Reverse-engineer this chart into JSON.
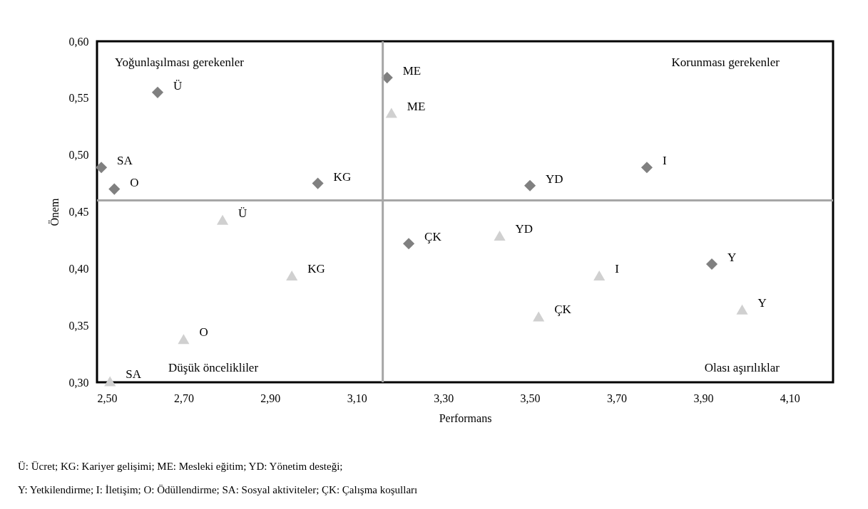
{
  "chart_data": {
    "type": "scatter",
    "xlabel": "Performans",
    "ylabel": "Önem",
    "xlim": [
      2.5,
      4.2
    ],
    "ylim": [
      0.3,
      0.6
    ],
    "xticks": [
      {
        "value": 2.5,
        "label": "2,50"
      },
      {
        "value": 2.7,
        "label": "2,70"
      },
      {
        "value": 2.9,
        "label": "2,90"
      },
      {
        "value": 3.1,
        "label": "3,10"
      },
      {
        "value": 3.3,
        "label": "3,30"
      },
      {
        "value": 3.5,
        "label": "3,50"
      },
      {
        "value": 3.7,
        "label": "3,70"
      },
      {
        "value": 3.9,
        "label": "3,90"
      },
      {
        "value": 4.1,
        "label": "4,10"
      }
    ],
    "yticks": [
      {
        "value": 0.3,
        "label": "0,30"
      },
      {
        "value": 0.35,
        "label": "0,35"
      },
      {
        "value": 0.4,
        "label": "0,40"
      },
      {
        "value": 0.45,
        "label": "0,45"
      },
      {
        "value": 0.5,
        "label": "0,50"
      },
      {
        "value": 0.55,
        "label": "0,55"
      },
      {
        "value": 0.6,
        "label": "0,60"
      }
    ],
    "grid": false,
    "series": [
      {
        "color": "#808080",
        "marker": "diamond",
        "x": [
          2.64,
          3.17,
          2.51,
          2.54,
          3.01,
          3.5,
          3.77,
          3.22,
          3.92
        ],
        "values": [
          0.555,
          0.568,
          0.489,
          0.47,
          0.475,
          0.473,
          0.489,
          0.422,
          0.404
        ]
      },
      {
        "color": "#d0d0d0",
        "marker": "triangle",
        "x": [
          3.18,
          2.79,
          2.95,
          2.7,
          2.53,
          3.43,
          3.66,
          3.52,
          3.99
        ],
        "values": [
          0.537,
          0.443,
          0.394,
          0.338,
          0.301,
          0.429,
          0.394,
          0.358,
          0.364
        ]
      }
    ],
    "ref_lines": [
      {
        "axis": "x",
        "value": 3.16,
        "color": "#a6a6a6"
      },
      {
        "axis": "y",
        "value": 0.46,
        "color": "#a6a6a6"
      }
    ],
    "annotations": [
      "Yoğunlaşılması gerekenler",
      "Korunması gerekenler",
      "Düşük öncelikliler",
      "Olası aşırılıklar",
      {
        "text": "Ü",
        "x": 2.64,
        "y": 0.555
      },
      {
        "text": "ME",
        "x": 3.17,
        "y": 0.568
      },
      {
        "text": "SA",
        "x": 2.51,
        "y": 0.489
      },
      {
        "text": "O",
        "x": 2.54,
        "y": 0.47
      },
      {
        "text": "KG",
        "x": 3.01,
        "y": 0.475
      },
      {
        "text": "YD",
        "x": 3.5,
        "y": 0.473
      },
      {
        "text": "I",
        "x": 3.77,
        "y": 0.489
      },
      {
        "text": "ÇK",
        "x": 3.22,
        "y": 0.422
      },
      {
        "text": "Y",
        "x": 3.92,
        "y": 0.404
      },
      {
        "text": "ME",
        "x": 3.18,
        "y": 0.537
      },
      {
        "text": "Ü",
        "x": 2.79,
        "y": 0.443
      },
      {
        "text": "KG",
        "x": 2.95,
        "y": 0.394
      },
      {
        "text": "O",
        "x": 2.7,
        "y": 0.338
      },
      {
        "text": "SA",
        "x": 2.53,
        "y": 0.301
      },
      {
        "text": "YD",
        "x": 3.43,
        "y": 0.429
      },
      {
        "text": "I",
        "x": 3.66,
        "y": 0.394
      },
      {
        "text": "ÇK",
        "x": 3.52,
        "y": 0.358
      },
      {
        "text": "Y",
        "x": 3.99,
        "y": 0.364
      },
      "Ü: Ücret; KG: Kariyer gelişimi; ME: Mesleki eğitim; YD: Yönetim desteği;",
      "Y: Yetkilendirme; I: İletişim; O: Ödüllendirme; SA: Sosyal aktiviteler; ÇK: Çalışma koşulları"
    ]
  }
}
